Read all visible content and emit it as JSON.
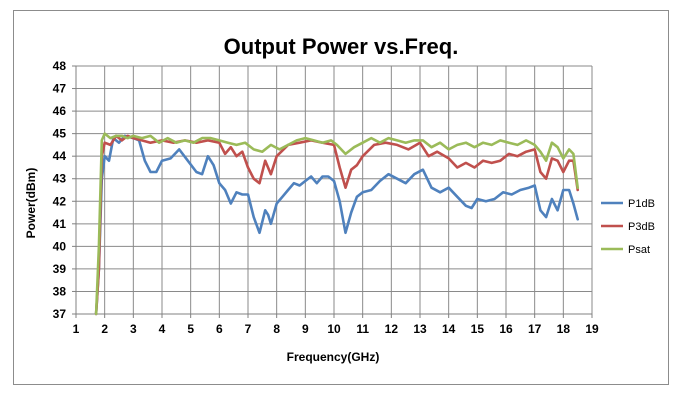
{
  "chart_data": {
    "type": "line",
    "title": "Output Power vs.Freq.",
    "xlabel": "Frequency(GHz)",
    "ylabel": "Power(dBm)",
    "xlim": [
      1,
      19
    ],
    "ylim": [
      37,
      48
    ],
    "xticks": [
      1,
      2,
      3,
      4,
      5,
      6,
      7,
      8,
      9,
      10,
      11,
      12,
      13,
      14,
      15,
      16,
      17,
      18,
      19
    ],
    "yticks": [
      37,
      38,
      39,
      40,
      41,
      42,
      43,
      44,
      45,
      46,
      47,
      48
    ],
    "grid": true,
    "legend_position": "right",
    "series": [
      {
        "name": "P1dB",
        "color": "#4f81bd",
        "points": [
          [
            1.7,
            37
          ],
          [
            1.8,
            39
          ],
          [
            1.9,
            43
          ],
          [
            2.0,
            44.0
          ],
          [
            2.15,
            43.8
          ],
          [
            2.3,
            44.8
          ],
          [
            2.5,
            44.6
          ],
          [
            2.7,
            44.9
          ],
          [
            3.0,
            44.8
          ],
          [
            3.2,
            44.7
          ],
          [
            3.4,
            43.8
          ],
          [
            3.6,
            43.3
          ],
          [
            3.8,
            43.3
          ],
          [
            4.0,
            43.8
          ],
          [
            4.3,
            43.9
          ],
          [
            4.6,
            44.3
          ],
          [
            4.9,
            43.8
          ],
          [
            5.2,
            43.3
          ],
          [
            5.4,
            43.2
          ],
          [
            5.6,
            44.0
          ],
          [
            5.8,
            43.6
          ],
          [
            6.0,
            42.8
          ],
          [
            6.2,
            42.5
          ],
          [
            6.4,
            41.9
          ],
          [
            6.6,
            42.4
          ],
          [
            6.8,
            42.3
          ],
          [
            7.0,
            42.3
          ],
          [
            7.2,
            41.3
          ],
          [
            7.4,
            40.6
          ],
          [
            7.6,
            41.6
          ],
          [
            7.7,
            41.4
          ],
          [
            7.8,
            41.0
          ],
          [
            8.0,
            41.9
          ],
          [
            8.2,
            42.2
          ],
          [
            8.4,
            42.5
          ],
          [
            8.6,
            42.8
          ],
          [
            8.8,
            42.7
          ],
          [
            9.0,
            42.9
          ],
          [
            9.2,
            43.1
          ],
          [
            9.4,
            42.8
          ],
          [
            9.6,
            43.1
          ],
          [
            9.8,
            43.1
          ],
          [
            10.0,
            42.9
          ],
          [
            10.2,
            42.0
          ],
          [
            10.4,
            40.6
          ],
          [
            10.6,
            41.5
          ],
          [
            10.8,
            42.2
          ],
          [
            11.0,
            42.4
          ],
          [
            11.3,
            42.5
          ],
          [
            11.6,
            42.9
          ],
          [
            11.9,
            43.2
          ],
          [
            12.2,
            43.0
          ],
          [
            12.5,
            42.8
          ],
          [
            12.8,
            43.2
          ],
          [
            13.1,
            43.4
          ],
          [
            13.4,
            42.6
          ],
          [
            13.7,
            42.4
          ],
          [
            14.0,
            42.6
          ],
          [
            14.3,
            42.2
          ],
          [
            14.6,
            41.8
          ],
          [
            14.8,
            41.7
          ],
          [
            15.0,
            42.1
          ],
          [
            15.3,
            42.0
          ],
          [
            15.6,
            42.1
          ],
          [
            15.9,
            42.4
          ],
          [
            16.2,
            42.3
          ],
          [
            16.5,
            42.5
          ],
          [
            16.8,
            42.6
          ],
          [
            17.0,
            42.7
          ],
          [
            17.2,
            41.6
          ],
          [
            17.4,
            41.3
          ],
          [
            17.6,
            42.1
          ],
          [
            17.8,
            41.6
          ],
          [
            18.0,
            42.5
          ],
          [
            18.2,
            42.5
          ],
          [
            18.35,
            41.9
          ],
          [
            18.5,
            41.2
          ]
        ]
      },
      {
        "name": "P3dB",
        "color": "#c0504d",
        "points": [
          [
            1.7,
            37
          ],
          [
            1.8,
            39
          ],
          [
            1.9,
            44
          ],
          [
            2.0,
            44.6
          ],
          [
            2.2,
            44.5
          ],
          [
            2.4,
            44.9
          ],
          [
            2.6,
            44.7
          ],
          [
            2.8,
            44.9
          ],
          [
            3.0,
            44.8
          ],
          [
            3.3,
            44.7
          ],
          [
            3.6,
            44.6
          ],
          [
            4.0,
            44.7
          ],
          [
            4.4,
            44.6
          ],
          [
            4.8,
            44.7
          ],
          [
            5.2,
            44.6
          ],
          [
            5.6,
            44.7
          ],
          [
            6.0,
            44.6
          ],
          [
            6.2,
            44.1
          ],
          [
            6.4,
            44.4
          ],
          [
            6.6,
            44.0
          ],
          [
            6.8,
            44.2
          ],
          [
            7.0,
            43.5
          ],
          [
            7.2,
            43.0
          ],
          [
            7.4,
            42.8
          ],
          [
            7.6,
            43.8
          ],
          [
            7.8,
            43.2
          ],
          [
            8.0,
            44.0
          ],
          [
            8.4,
            44.5
          ],
          [
            8.8,
            44.6
          ],
          [
            9.2,
            44.7
          ],
          [
            9.6,
            44.6
          ],
          [
            10.0,
            44.5
          ],
          [
            10.2,
            43.5
          ],
          [
            10.4,
            42.6
          ],
          [
            10.6,
            43.4
          ],
          [
            10.8,
            43.6
          ],
          [
            11.0,
            44.0
          ],
          [
            11.4,
            44.5
          ],
          [
            11.8,
            44.6
          ],
          [
            12.2,
            44.5
          ],
          [
            12.6,
            44.3
          ],
          [
            13.0,
            44.6
          ],
          [
            13.3,
            44.0
          ],
          [
            13.6,
            44.2
          ],
          [
            14.0,
            43.9
          ],
          [
            14.3,
            43.5
          ],
          [
            14.6,
            43.7
          ],
          [
            14.9,
            43.5
          ],
          [
            15.2,
            43.8
          ],
          [
            15.5,
            43.7
          ],
          [
            15.8,
            43.8
          ],
          [
            16.1,
            44.1
          ],
          [
            16.4,
            44.0
          ],
          [
            16.7,
            44.2
          ],
          [
            17.0,
            44.3
          ],
          [
            17.2,
            43.3
          ],
          [
            17.4,
            43.0
          ],
          [
            17.6,
            43.9
          ],
          [
            17.8,
            43.8
          ],
          [
            18.0,
            43.3
          ],
          [
            18.2,
            43.8
          ],
          [
            18.35,
            43.8
          ],
          [
            18.5,
            42.5
          ]
        ]
      },
      {
        "name": "Psat",
        "color": "#9bbb59",
        "points": [
          [
            1.7,
            37
          ],
          [
            1.8,
            40
          ],
          [
            1.9,
            44.7
          ],
          [
            2.0,
            45.0
          ],
          [
            2.2,
            44.8
          ],
          [
            2.4,
            44.9
          ],
          [
            2.6,
            44.9
          ],
          [
            2.8,
            44.8
          ],
          [
            3.0,
            44.9
          ],
          [
            3.3,
            44.8
          ],
          [
            3.6,
            44.9
          ],
          [
            3.9,
            44.6
          ],
          [
            4.2,
            44.8
          ],
          [
            4.5,
            44.6
          ],
          [
            4.8,
            44.7
          ],
          [
            5.1,
            44.6
          ],
          [
            5.4,
            44.8
          ],
          [
            5.7,
            44.8
          ],
          [
            6.0,
            44.7
          ],
          [
            6.3,
            44.6
          ],
          [
            6.6,
            44.5
          ],
          [
            6.9,
            44.6
          ],
          [
            7.2,
            44.3
          ],
          [
            7.5,
            44.2
          ],
          [
            7.8,
            44.5
          ],
          [
            8.1,
            44.3
          ],
          [
            8.4,
            44.5
          ],
          [
            8.7,
            44.7
          ],
          [
            9.0,
            44.8
          ],
          [
            9.3,
            44.7
          ],
          [
            9.6,
            44.6
          ],
          [
            9.9,
            44.7
          ],
          [
            10.1,
            44.5
          ],
          [
            10.4,
            44.1
          ],
          [
            10.7,
            44.4
          ],
          [
            11.0,
            44.6
          ],
          [
            11.3,
            44.8
          ],
          [
            11.6,
            44.6
          ],
          [
            11.9,
            44.8
          ],
          [
            12.2,
            44.7
          ],
          [
            12.5,
            44.6
          ],
          [
            12.8,
            44.7
          ],
          [
            13.1,
            44.7
          ],
          [
            13.4,
            44.4
          ],
          [
            13.7,
            44.6
          ],
          [
            14.0,
            44.3
          ],
          [
            14.3,
            44.5
          ],
          [
            14.6,
            44.6
          ],
          [
            14.9,
            44.4
          ],
          [
            15.2,
            44.6
          ],
          [
            15.5,
            44.5
          ],
          [
            15.8,
            44.7
          ],
          [
            16.1,
            44.6
          ],
          [
            16.4,
            44.5
          ],
          [
            16.7,
            44.7
          ],
          [
            17.0,
            44.5
          ],
          [
            17.2,
            44.2
          ],
          [
            17.4,
            43.8
          ],
          [
            17.6,
            44.6
          ],
          [
            17.8,
            44.4
          ],
          [
            18.0,
            43.9
          ],
          [
            18.2,
            44.3
          ],
          [
            18.35,
            44.1
          ],
          [
            18.5,
            42.6
          ]
        ]
      }
    ]
  }
}
